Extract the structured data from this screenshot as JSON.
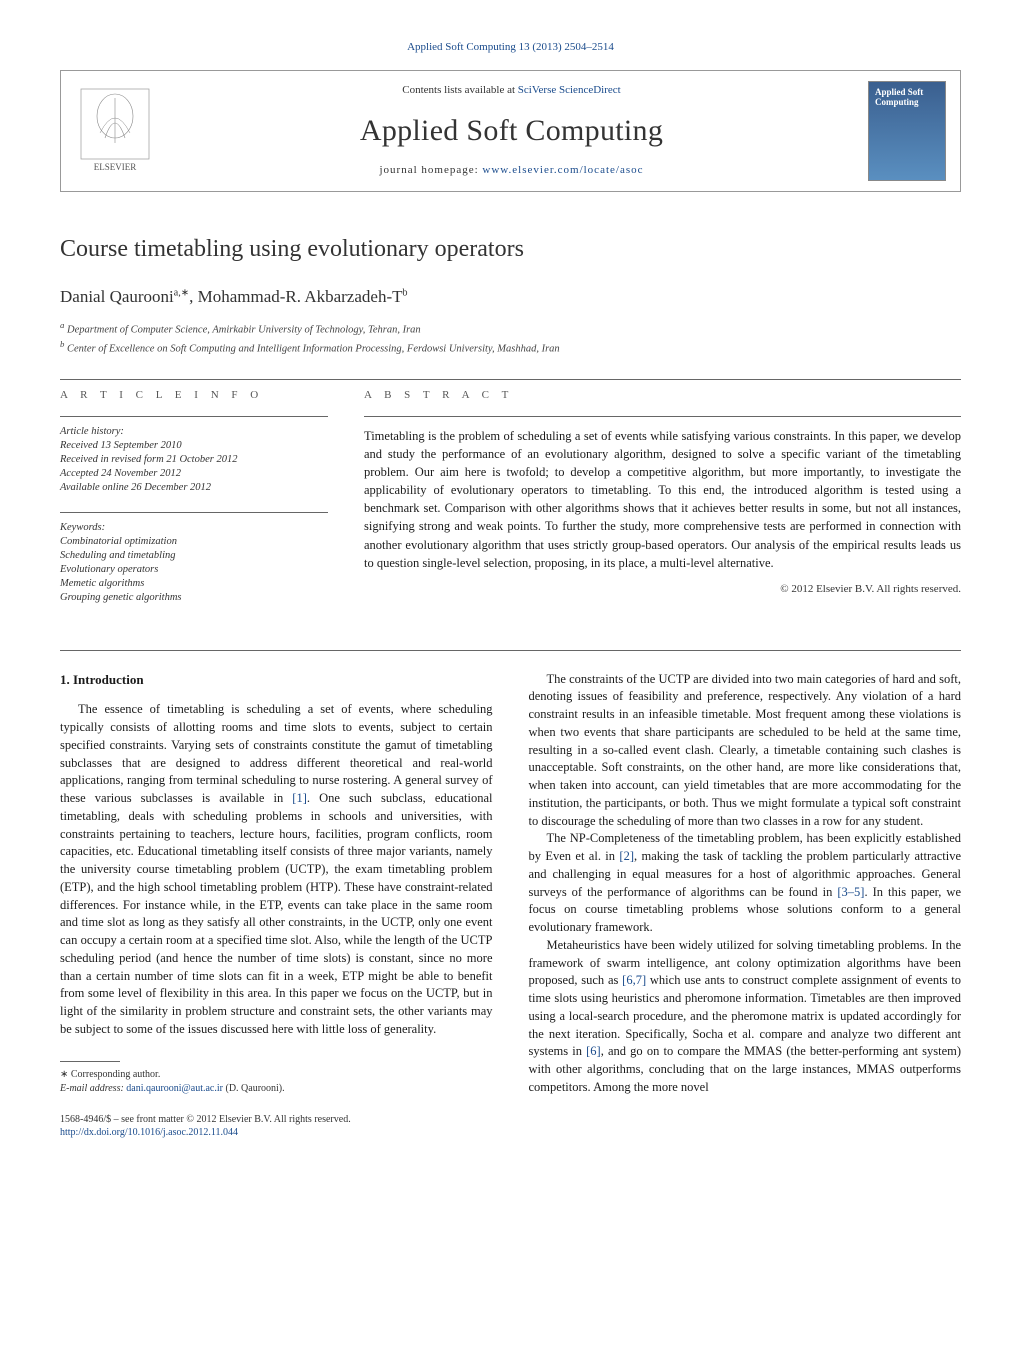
{
  "header": {
    "citation": "Applied Soft Computing 13 (2013) 2504–2514",
    "citation_link_text": "Applied Soft Computing 13 (2013) 2504–2514"
  },
  "banner": {
    "contents_prefix": "Contents lists available at ",
    "contents_link": "SciVerse ScienceDirect",
    "journal_name": "Applied Soft Computing",
    "homepage_prefix": "journal homepage: ",
    "homepage_url": "www.elsevier.com/locate/asoc",
    "cover_title": "Applied Soft Computing"
  },
  "title": "Course timetabling using evolutionary operators",
  "authors_html": "Danial Qaurooni",
  "author1": "Danial Qaurooni",
  "author1_sup": "a,∗",
  "author_sep": ", ",
  "author2": "Mohammad-R. Akbarzadeh-T",
  "author2_sup": "b",
  "affiliations": {
    "a": "Department of Computer Science, Amirkabir University of Technology, Tehran, Iran",
    "b": "Center of Excellence on Soft Computing and Intelligent Information Processing, Ferdowsi University, Mashhad, Iran",
    "a_prefix": "a ",
    "b_prefix": "b "
  },
  "meta": {
    "article_info_label": "a r t i c l e   i n f o",
    "abstract_label": "a b s t r a c t",
    "history_label": "Article history:",
    "received": "Received 13 September 2010",
    "revised": "Received in revised form 21 October 2012",
    "accepted": "Accepted 24 November 2012",
    "online": "Available online 26 December 2012",
    "keywords_label": "Keywords:",
    "keywords": [
      "Combinatorial optimization",
      "Scheduling and timetabling",
      "Evolutionary operators",
      "Memetic algorithms",
      "Grouping genetic algorithms"
    ]
  },
  "abstract": "Timetabling is the problem of scheduling a set of events while satisfying various constraints. In this paper, we develop and study the performance of an evolutionary algorithm, designed to solve a specific variant of the timetabling problem. Our aim here is twofold; to develop a competitive algorithm, but more importantly, to investigate the applicability of evolutionary operators to timetabling. To this end, the introduced algorithm is tested using a benchmark set. Comparison with other algorithms shows that it achieves better results in some, but not all instances, signifying strong and weak points. To further the study, more comprehensive tests are performed in connection with another evolutionary algorithm that uses strictly group-based operators. Our analysis of the empirical results leads us to question single-level selection, proposing, in its place, a multi-level alternative.",
  "copyright": "© 2012 Elsevier B.V. All rights reserved.",
  "sections": {
    "intro_heading": "1. Introduction",
    "left_col_paragraphs": [
      "The essence of timetabling is scheduling a set of events, where scheduling typically consists of allotting rooms and time slots to events, subject to certain specified constraints. Varying sets of constraints constitute the gamut of timetabling subclasses that are designed to address different theoretical and real-world applications, ranging from terminal scheduling to nurse rostering. A general survey of these various subclasses is available in [1]. One such subclass, educational timetabling, deals with scheduling problems in schools and universities, with constraints pertaining to teachers, lecture hours, facilities, program conflicts, room capacities, etc. Educational timetabling itself consists of three major variants, namely the university course timetabling problem (UCTP), the exam timetabling problem (ETP), and the high school timetabling problem (HTP). These have constraint-related differences. For instance while, in the ETP, events can take place in the same room and time slot as long as they satisfy all other constraints, in the UCTP, only one event can occupy a certain room at a specified time slot. Also, while the length of the UCTP scheduling period (and hence the number of time slots) is constant, since no more than a certain number of time slots can fit in a week, ETP might be able to benefit from some level of flexibility in this area. In this paper we focus on the UCTP, but in light of the similarity in problem structure and constraint sets, the other variants may be subject to some of the issues discussed here with little loss of generality."
    ],
    "right_col_paragraphs": [
      "The constraints of the UCTP are divided into two main categories of hard and soft, denoting issues of feasibility and preference, respectively. Any violation of a hard constraint results in an infeasible timetable. Most frequent among these violations is when two events that share participants are scheduled to be held at the same time, resulting in a so-called event clash. Clearly, a timetable containing such clashes is unacceptable. Soft constraints, on the other hand, are more like considerations that, when taken into account, can yield timetables that are more accommodating for the institution, the participants, or both. Thus we might formulate a typical soft constraint to discourage the scheduling of more than two classes in a row for any student.",
      "The NP-Completeness of the timetabling problem, has been explicitly established by Even et al. in [2], making the task of tackling the problem particularly attractive and challenging in equal measures for a host of algorithmic approaches. General surveys of the performance of algorithms can be found in [3–5]. In this paper, we focus on course timetabling problems whose solutions conform to a general evolutionary framework.",
      "Metaheuristics have been widely utilized for solving timetabling problems. In the framework of swarm intelligence, ant colony optimization algorithms have been proposed, such as [6,7] which use ants to construct complete assignment of events to time slots using heuristics and pheromone information. Timetables are then improved using a local-search procedure, and the pheromone matrix is updated accordingly for the next iteration. Specifically, Socha et al. compare and analyze two different ant systems in [6], and go on to compare the MMAS (the better-performing ant system) with other algorithms, concluding that on the large instances, MMAS outperforms competitors. Among the more novel"
    ]
  },
  "refs": {
    "r1": "[1]",
    "r2": "[2]",
    "r35": "[3–5]",
    "r67": "[6,7]",
    "r6": "[6]"
  },
  "footnote": {
    "corresponding": "∗ Corresponding author.",
    "email_label": "E-mail address: ",
    "email": "dani.qaurooni@aut.ac.ir",
    "email_suffix": " (D. Qaurooni)."
  },
  "bottom": {
    "issn": "1568-4946/$ – see front matter © 2012 Elsevier B.V. All rights reserved.",
    "doi_url": "http://dx.doi.org/10.1016/j.asoc.2012.11.044"
  },
  "colors": {
    "link": "#1a4b8c",
    "text": "#1a1a1a",
    "rule": "#666666"
  }
}
